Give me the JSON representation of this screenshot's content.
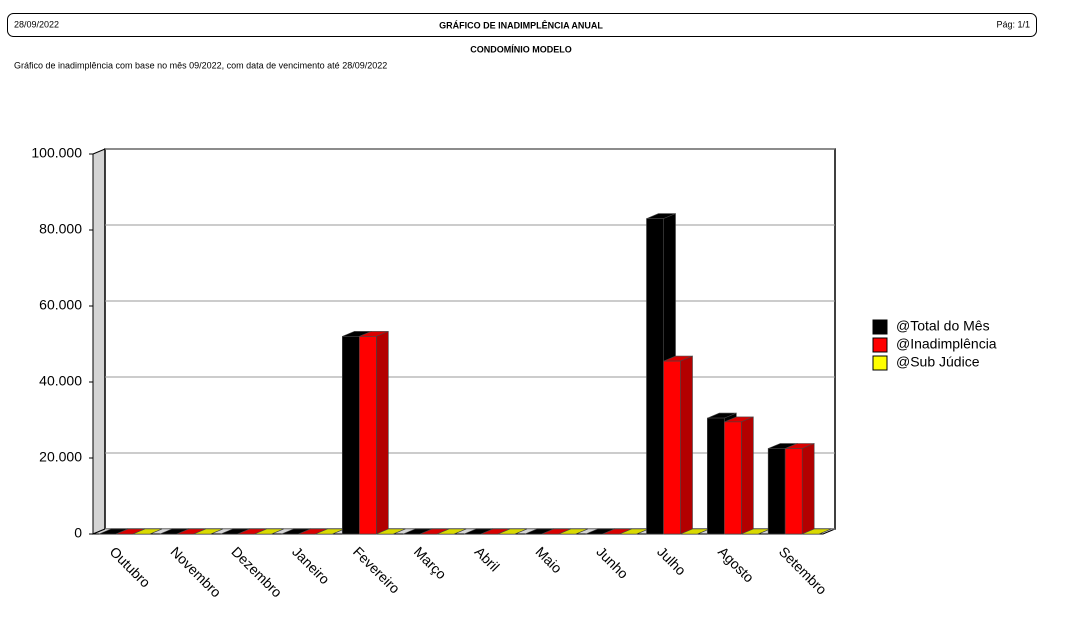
{
  "header": {
    "date": "28/09/2022",
    "title": "GRÁFICO DE INADIMPLÊNCIA ANUAL",
    "page": "Pág: 1/1",
    "company": "CONDOMÍNIO MODELO",
    "subtitle": "Gráfico de inadimplência com base no mês 09/2022, com data de vencimento até 28/09/2022"
  },
  "chart_data": {
    "type": "bar3d",
    "categories": [
      "Outubro",
      "Novembro",
      "Dezembro",
      "Janeiro",
      "Fevereiro",
      "Março",
      "Abril",
      "Maio",
      "Junho",
      "Julho",
      "Agosto",
      "Setembro"
    ],
    "series": [
      {
        "name": "@Total do Mês",
        "color": "#000000",
        "values": [
          0,
          0,
          0,
          0,
          52000,
          0,
          0,
          0,
          0,
          83000,
          30500,
          22500
        ]
      },
      {
        "name": "@Inadimplência",
        "color": "#ff0000",
        "values": [
          0,
          0,
          0,
          0,
          52000,
          0,
          0,
          0,
          0,
          45500,
          29500,
          22500
        ]
      },
      {
        "name": "@Sub Júdice",
        "color": "#ffff00",
        "values": [
          0,
          0,
          0,
          0,
          0,
          0,
          0,
          0,
          0,
          0,
          0,
          0
        ]
      }
    ],
    "ylim": [
      0,
      100000
    ],
    "yticks": [
      0,
      {
        "value": 20000,
        "label": "20.000"
      },
      {
        "value": 40000,
        "label": "40.000"
      },
      {
        "value": 60000,
        "label": "60.000"
      },
      {
        "value": 80000,
        "label": "80.000"
      },
      {
        "value": 100000,
        "label": "100.000"
      }
    ],
    "grid": true,
    "legend": "right"
  }
}
